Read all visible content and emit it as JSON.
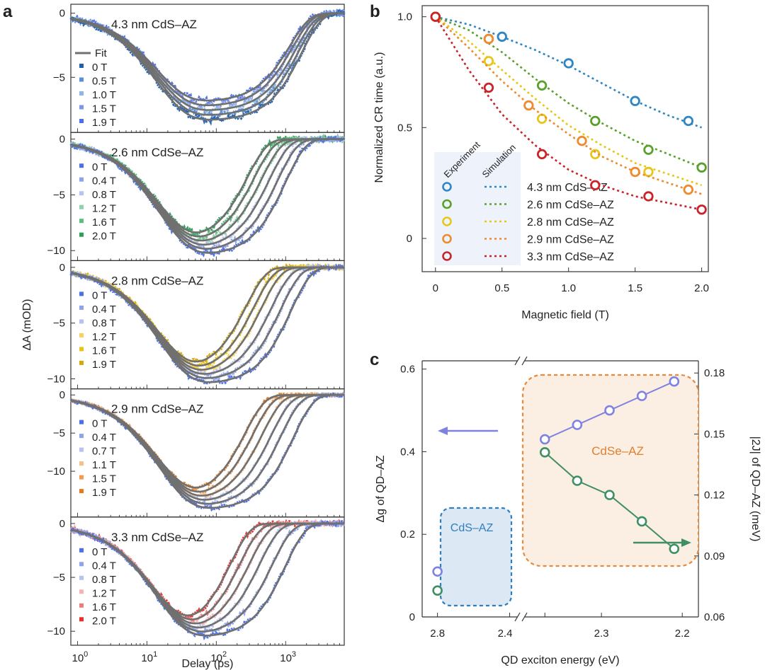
{
  "panel_letters": {
    "a": "a",
    "b": "b",
    "c": "c"
  },
  "chart_data": [
    {
      "panel": "a",
      "type": "line",
      "xscale": "log",
      "xlabel": "Delay (ps)",
      "ylabel": "ΔA (mOD)",
      "xlim": [
        0.8,
        7000
      ],
      "xticks": [
        "10^0",
        "10^1",
        "10^2",
        "10^3"
      ],
      "fit_label": "Fit",
      "subplots": [
        {
          "title": "4.3 nm CdS–AZ",
          "ylim": [
            -9.3,
            0.7
          ],
          "yticks": [
            0,
            -5
          ],
          "min": -8.3,
          "tmin": 90,
          "fields": [
            "0 T",
            "0.5 T",
            "1.0 T",
            "1.5 T",
            "1.9 T"
          ],
          "colors": [
            "#1f5fae",
            "#5b8fd6",
            "#8fb4e8",
            "#7f95e6",
            "#4a6fe6"
          ],
          "show_fit_legend": true,
          "rec_times": [
            1700,
            1550,
            1400,
            1250,
            1150
          ]
        },
        {
          "title": "2.6 nm CdSe–AZ",
          "ylim": [
            -10.9,
            0.6
          ],
          "yticks": [
            0,
            -5,
            -10
          ],
          "min": -10.2,
          "tmin": 100,
          "fields": [
            "0 T",
            "0.4 T",
            "0.8 T",
            "1.2 T",
            "1.6 T",
            "2.0 T"
          ],
          "colors": [
            "#4a6fe6",
            "#8ea3e8",
            "#b7c3ee",
            "#8fd1a9",
            "#5bbd7e",
            "#2f9e57"
          ],
          "show_fit_legend": false,
          "rec_times": [
            1000,
            760,
            580,
            450,
            350,
            280
          ]
        },
        {
          "title": "2.8 nm CdSe–AZ",
          "ylim": [
            -10.9,
            0.6
          ],
          "yticks": [
            0,
            -5,
            -10
          ],
          "min": -10.3,
          "tmin": 100,
          "fields": [
            "0 T",
            "0.4 T",
            "0.8 T",
            "1.2 T",
            "1.6 T",
            "1.9 T"
          ],
          "colors": [
            "#4a6fe6",
            "#8ea3e8",
            "#b7c3ee",
            "#f3d45a",
            "#e9c21a",
            "#d4a80a"
          ],
          "show_fit_legend": false,
          "rec_times": [
            1200,
            850,
            620,
            450,
            350,
            270
          ]
        },
        {
          "title": "2.9 nm CdSe–AZ",
          "ylim": [
            -16,
            0.8
          ],
          "yticks": [
            0,
            -5,
            -10
          ],
          "min": -14.8,
          "tmin": 100,
          "fields": [
            "0 T",
            "0.4 T",
            "0.7 T",
            "1.1 T",
            "1.5 T",
            "1.9 T"
          ],
          "colors": [
            "#4a6fe6",
            "#8ea3e8",
            "#b7c3ee",
            "#f6bf8a",
            "#f39a4d",
            "#e47b1b"
          ],
          "show_fit_legend": false,
          "rec_times": [
            1300,
            850,
            620,
            460,
            340,
            260
          ]
        },
        {
          "title": "3.3 nm CdSe–AZ",
          "ylim": [
            -11.3,
            0.6
          ],
          "yticks": [
            0,
            -5,
            -10
          ],
          "min": -10.4,
          "tmin": 90,
          "fields": [
            "0 T",
            "0.4 T",
            "0.8 T",
            "1.2 T",
            "1.6 T",
            "2.0 T"
          ],
          "colors": [
            "#4a6fe6",
            "#8ea3e8",
            "#b7c3ee",
            "#f7b3b3",
            "#f07a7a",
            "#e0342a"
          ],
          "show_fit_legend": false,
          "rec_times": [
            1000,
            640,
            420,
            300,
            220,
            160
          ]
        }
      ]
    },
    {
      "panel": "b",
      "type": "scatter",
      "xlabel": "Magnetic field (T)",
      "ylabel": "Normalized CR time (a.u.)",
      "xlim": [
        -0.1,
        2.05
      ],
      "ylim": [
        -0.15,
        1.05
      ],
      "xticks": [
        0,
        0.5,
        1.0,
        1.5,
        2.0
      ],
      "xtick_labels": [
        "0",
        "0.5",
        "1.0",
        "1.5",
        "2.0"
      ],
      "yticks": [
        0,
        0.5,
        1.0
      ],
      "ytick_labels": [
        "0",
        "0.5",
        "1.0"
      ],
      "legend_headers": {
        "experiment": "Experiment",
        "simulation": "Simulation"
      },
      "series": [
        {
          "name": "4.3 nm CdS–AZ",
          "color": "#2f86c5",
          "x": [
            0,
            0.5,
            1.0,
            1.5,
            1.9
          ],
          "y": [
            1.0,
            0.91,
            0.79,
            0.62,
            0.53
          ],
          "sim_x": [
            0,
            0.25,
            0.5,
            0.75,
            1.0,
            1.25,
            1.5,
            1.75,
            2.0
          ],
          "sim_y": [
            1.0,
            0.965,
            0.91,
            0.85,
            0.78,
            0.7,
            0.62,
            0.555,
            0.5
          ]
        },
        {
          "name": "2.6 nm CdSe–AZ",
          "color": "#5aa02c",
          "x": [
            0,
            0.4,
            0.8,
            1.2,
            1.6,
            2.0
          ],
          "y": [
            1.0,
            0.9,
            0.69,
            0.53,
            0.4,
            0.32
          ],
          "sim_x": [
            0,
            0.25,
            0.5,
            0.75,
            1.0,
            1.25,
            1.5,
            1.75,
            2.0
          ],
          "sim_y": [
            1.0,
            0.94,
            0.84,
            0.72,
            0.61,
            0.52,
            0.44,
            0.38,
            0.32
          ]
        },
        {
          "name": "2.8 nm CdSe–AZ",
          "color": "#e6c619",
          "x": [
            0,
            0.4,
            0.8,
            1.2,
            1.6,
            1.9
          ],
          "y": [
            1.0,
            0.8,
            0.54,
            0.38,
            0.3,
            0.22
          ],
          "sim_x": [
            0,
            0.25,
            0.5,
            0.75,
            1.0,
            1.25,
            1.5,
            1.75,
            2.0
          ],
          "sim_y": [
            1.0,
            0.89,
            0.76,
            0.63,
            0.51,
            0.42,
            0.34,
            0.29,
            0.24
          ]
        },
        {
          "name": "2.9 nm CdSe–AZ",
          "color": "#ee8a2f",
          "x": [
            0,
            0.4,
            0.7,
            1.1,
            1.5,
            1.9
          ],
          "y": [
            1.0,
            0.9,
            0.6,
            0.44,
            0.3,
            0.22
          ],
          "sim_x": [
            0,
            0.25,
            0.5,
            0.75,
            1.0,
            1.25,
            1.5,
            1.75,
            2.0
          ],
          "sim_y": [
            1.0,
            0.86,
            0.71,
            0.58,
            0.47,
            0.37,
            0.3,
            0.25,
            0.2
          ]
        },
        {
          "name": "3.3 nm CdSe–AZ",
          "color": "#c9242b",
          "x": [
            0,
            0.4,
            0.8,
            1.2,
            1.6,
            2.0
          ],
          "y": [
            1.0,
            0.68,
            0.38,
            0.24,
            0.19,
            0.13
          ],
          "sim_x": [
            0,
            0.25,
            0.5,
            0.75,
            1.0,
            1.25,
            1.5,
            1.75,
            2.0
          ],
          "sim_y": [
            1.0,
            0.76,
            0.56,
            0.42,
            0.31,
            0.24,
            0.19,
            0.16,
            0.13
          ]
        }
      ]
    },
    {
      "panel": "c",
      "type": "scatter",
      "xlabel": "QD exciton energy (eV)",
      "ylabel_left": "Δg of QD–AZ",
      "ylabel_right": "|2J| of QD–AZ (meV)",
      "ylim_left": [
        0,
        0.62
      ],
      "ylim_right": [
        0.06,
        0.186
      ],
      "yticks_left": [
        0,
        0.2,
        0.4,
        0.6
      ],
      "ytick_labels_left": [
        "0",
        "0.2",
        "0.4",
        "0.6"
      ],
      "yticks_right": [
        0.06,
        0.09,
        0.12,
        0.15,
        0.18
      ],
      "ytick_labels_right": [
        "0.06",
        "0.09",
        "0.12",
        "0.15",
        "0.18"
      ],
      "xtick_labels_broken": [
        "2.8",
        "2.4"
      ],
      "xticks_right": [
        2.3,
        2.2
      ],
      "xtick_labels_right": [
        "2.3",
        "2.2"
      ],
      "box_labels": {
        "cdse": "CdSe–AZ",
        "cds": "CdS–AZ"
      },
      "series": [
        {
          "name": "Δg",
          "color": "#7f83df",
          "axis": "left",
          "x": [
            2.78,
            2.37,
            2.33,
            2.29,
            2.25,
            2.21
          ],
          "y": [
            0.11,
            0.43,
            0.465,
            0.5,
            0.535,
            0.57
          ]
        },
        {
          "name": "|2J|",
          "color": "#3f8f63",
          "axis": "right",
          "x": [
            2.78,
            2.37,
            2.33,
            2.29,
            2.25,
            2.21
          ],
          "y": [
            0.073,
            0.141,
            0.127,
            0.12,
            0.107,
            0.0935
          ]
        }
      ]
    }
  ]
}
